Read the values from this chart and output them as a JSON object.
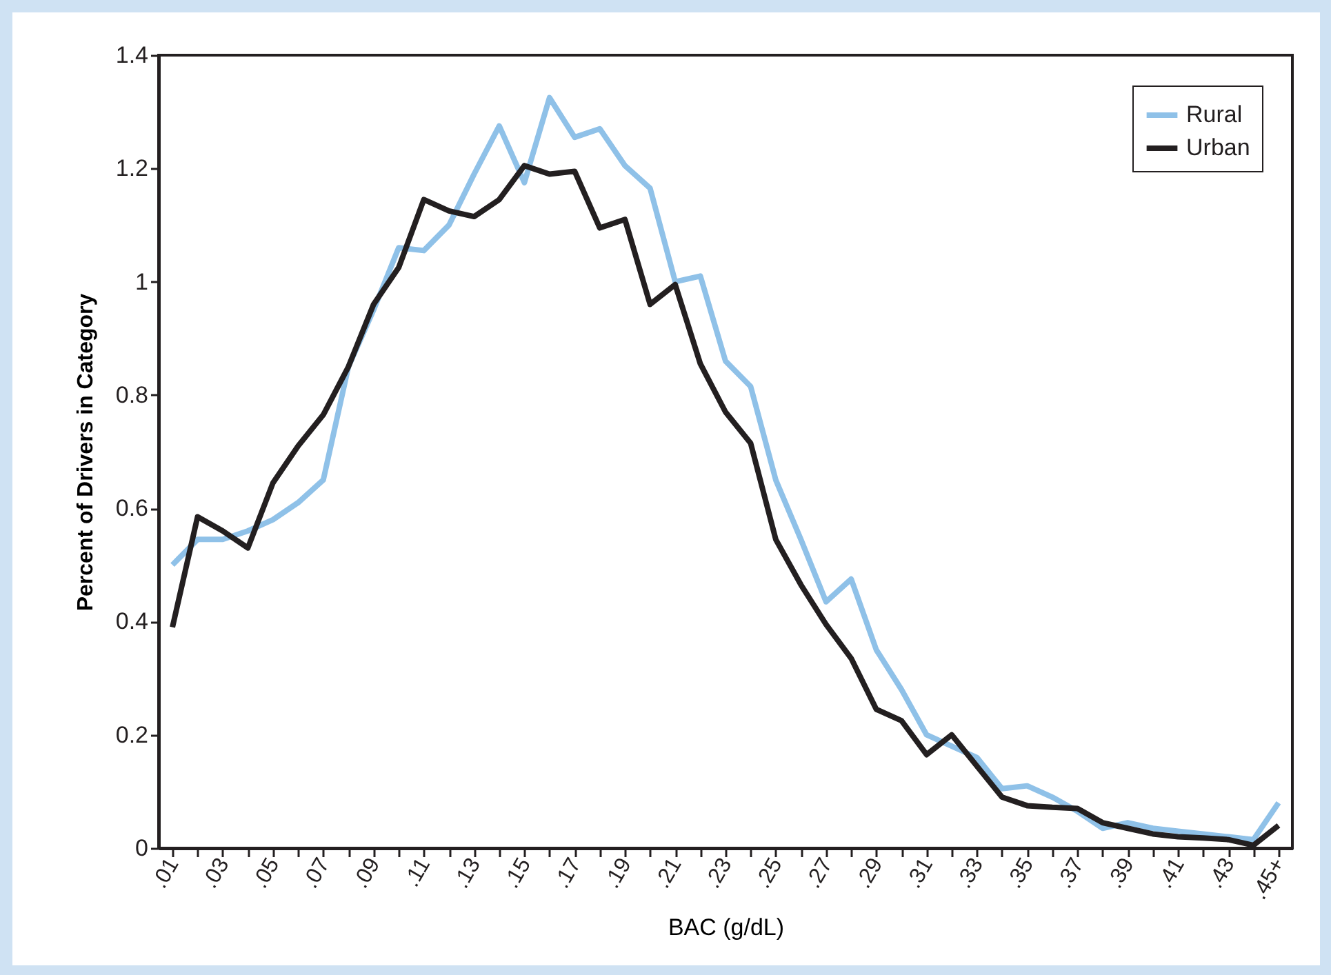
{
  "chart_data": {
    "type": "line",
    "xlabel": "BAC (g/dL)",
    "ylabel": "Percent of Drivers in Category",
    "categories": [
      ".01",
      null,
      ".03",
      null,
      ".05",
      null,
      ".07",
      null,
      ".09",
      null,
      ".11",
      null,
      ".13",
      null,
      ".15",
      null,
      ".17",
      null,
      ".19",
      null,
      ".21",
      null,
      ".23",
      null,
      ".25",
      null,
      ".27",
      null,
      ".29",
      null,
      ".31",
      null,
      ".33",
      null,
      ".35",
      null,
      ".37",
      null,
      ".39",
      null,
      ".41",
      null,
      ".43",
      null,
      ".45+"
    ],
    "series": [
      {
        "name": "Rural",
        "color": "#8fc1e8",
        "values": [
          0.5,
          0.545,
          0.545,
          0.56,
          0.58,
          0.61,
          0.65,
          0.85,
          0.95,
          1.06,
          1.055,
          1.1,
          1.19,
          1.275,
          1.175,
          1.325,
          1.255,
          1.27,
          1.205,
          1.165,
          1.0,
          1.01,
          0.86,
          0.815,
          0.65,
          0.545,
          0.435,
          0.475,
          0.35,
          0.28,
          0.2,
          0.18,
          0.16,
          0.105,
          0.11,
          0.09,
          0.065,
          0.035,
          0.045,
          0.035,
          0.03,
          0.025,
          0.02,
          0.015,
          0.08
        ]
      },
      {
        "name": "Urban",
        "color": "#231f20",
        "values": [
          0.39,
          0.585,
          0.56,
          0.53,
          0.645,
          0.71,
          0.765,
          0.85,
          0.96,
          1.025,
          1.145,
          1.125,
          1.115,
          1.145,
          1.205,
          1.19,
          1.195,
          1.095,
          1.11,
          0.96,
          0.995,
          0.855,
          0.77,
          0.715,
          0.545,
          0.465,
          0.395,
          0.335,
          0.245,
          0.225,
          0.165,
          0.2,
          0.145,
          0.09,
          0.075,
          0.072,
          0.07,
          0.045,
          0.035,
          0.025,
          0.02,
          0.018,
          0.015,
          0.005,
          0.04
        ]
      }
    ],
    "ylim": [
      0,
      1.4
    ],
    "yticks": [
      0,
      0.2,
      0.4,
      0.6,
      0.8,
      1,
      1.2,
      1.4
    ],
    "grid": false,
    "legend": "top right",
    "marker": "none",
    "line_style": "solid"
  }
}
